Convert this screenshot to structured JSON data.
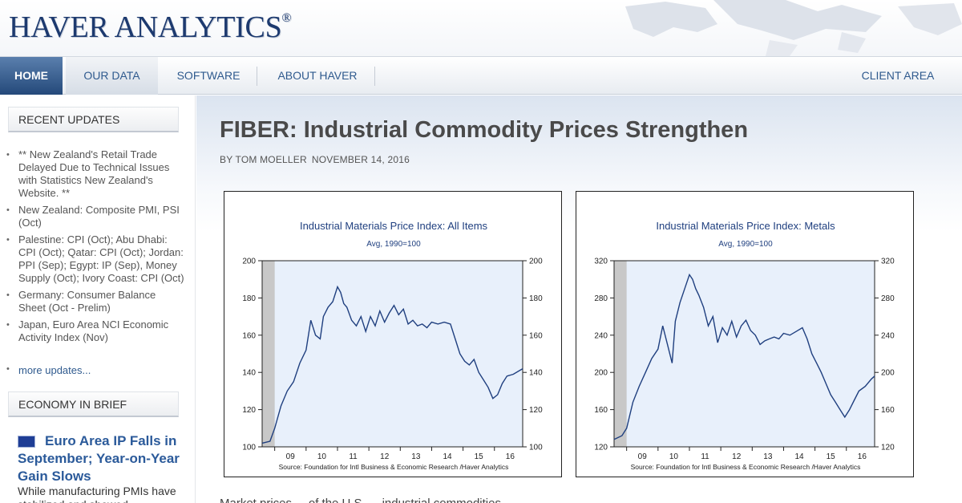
{
  "brand": {
    "name": "HAVER ANALYTICS",
    "mark": "®"
  },
  "nav": {
    "home": "HOME",
    "our_data": "OUR DATA",
    "software": "SOFTWARE",
    "about": "ABOUT HAVER",
    "client_area": "CLIENT AREA"
  },
  "sidebar": {
    "recent_heading": "RECENT UPDATES",
    "updates": [
      "** New Zealand's Retail Trade Delayed Due to Technical Issues with Statistics New Zealand's Website. **",
      "New Zealand: Composite PMI, PSI (Oct)",
      "Palestine: CPI (Oct); Abu Dhabi: CPI (Oct); Qatar: CPI (Oct); Jordan: PPI (Sep); Egypt: IP (Sep), Money Supply (Oct); Ivory Coast: CPI (Oct)",
      "Germany: Consumer Balance Sheet (Oct - Prelim)",
      "Japan, Euro Area NCI Economic Activity Index (Nov)"
    ],
    "more_updates": "more updates...",
    "brief_heading": "ECONOMY IN BRIEF",
    "brief_title": "Euro Area IP Falls in September; Year-on-Year Gain Slows",
    "brief_text": "While manufacturing PMIs have stabilized and showed"
  },
  "article": {
    "title": "FIBER: Industrial Commodity Prices Strengthen",
    "by": "BY TOM MOELLER",
    "date": "NOVEMBER 14, 2016",
    "body": "Market prices ... of the U.S. ... industrial commodities ... "
  },
  "colors": {
    "brand_blue": "#1d3a6f",
    "nav_active": "#24497a",
    "plot_bg": "#e8f0fb",
    "series": "#1f3f7f",
    "recession": "#c8c8c8"
  },
  "chart_data": [
    {
      "type": "line",
      "title": "Industrial Materials Price Index: All Items",
      "subtitle": "Avg, 1990=100",
      "source": "Source:  Foundation for Intl Business & Economic Research /Haver Analytics",
      "x_tick_labels": [
        "09",
        "10",
        "11",
        "12",
        "13",
        "14",
        "15",
        "16"
      ],
      "x_tick_positions": [
        2009.5,
        2010.5,
        2011.5,
        2012.5,
        2013.5,
        2014.5,
        2015.5,
        2016.5
      ],
      "xlim": [
        2008.6,
        2016.9
      ],
      "ylim": [
        100,
        200
      ],
      "y_ticks": [
        100,
        120,
        140,
        160,
        180,
        200
      ],
      "recession_band": [
        2008.6,
        2009.0
      ],
      "series": [
        {
          "name": "All Items",
          "x": [
            2008.6,
            2008.85,
            2009.0,
            2009.2,
            2009.4,
            2009.6,
            2009.8,
            2010.0,
            2010.15,
            2010.3,
            2010.45,
            2010.55,
            2010.7,
            2010.85,
            2011.0,
            2011.1,
            2011.2,
            2011.3,
            2011.45,
            2011.6,
            2011.75,
            2011.9,
            2012.05,
            2012.2,
            2012.35,
            2012.5,
            2012.65,
            2012.8,
            2012.95,
            2013.1,
            2013.25,
            2013.4,
            2013.55,
            2013.7,
            2013.85,
            2014.0,
            2014.2,
            2014.4,
            2014.6,
            2014.75,
            2014.9,
            2015.05,
            2015.2,
            2015.35,
            2015.5,
            2015.65,
            2015.8,
            2015.95,
            2016.1,
            2016.25,
            2016.4,
            2016.6,
            2016.8,
            2016.9
          ],
          "values": [
            102,
            103,
            110,
            122,
            130,
            135,
            145,
            152,
            168,
            160,
            158,
            170,
            175,
            178,
            186,
            183,
            177,
            175,
            168,
            165,
            170,
            162,
            170,
            165,
            173,
            167,
            172,
            176,
            171,
            174,
            166,
            168,
            165,
            166,
            164,
            167,
            166,
            167,
            166,
            158,
            150,
            146,
            144,
            147,
            140,
            136,
            132,
            126,
            128,
            134,
            138,
            139,
            141,
            142
          ]
        }
      ]
    },
    {
      "type": "line",
      "title": "Industrial Materials Price Index: Metals",
      "subtitle": "Avg, 1990=100",
      "source": "Source:  Foundation for Intl Business & Economic Research /Haver Analytics",
      "x_tick_labels": [
        "09",
        "10",
        "11",
        "12",
        "13",
        "14",
        "15",
        "16"
      ],
      "x_tick_positions": [
        2009.5,
        2010.5,
        2011.5,
        2012.5,
        2013.5,
        2014.5,
        2015.5,
        2016.5
      ],
      "xlim": [
        2008.6,
        2016.9
      ],
      "ylim": [
        120,
        320
      ],
      "y_ticks": [
        120,
        160,
        200,
        240,
        280,
        320
      ],
      "recession_band": [
        2008.6,
        2009.0
      ],
      "series": [
        {
          "name": "Metals",
          "x": [
            2008.6,
            2008.85,
            2009.0,
            2009.2,
            2009.4,
            2009.6,
            2009.8,
            2010.0,
            2010.15,
            2010.3,
            2010.45,
            2010.55,
            2010.7,
            2010.85,
            2011.0,
            2011.1,
            2011.2,
            2011.3,
            2011.45,
            2011.6,
            2011.75,
            2011.9,
            2012.05,
            2012.2,
            2012.35,
            2012.5,
            2012.65,
            2012.8,
            2012.95,
            2013.1,
            2013.25,
            2013.4,
            2013.55,
            2013.7,
            2013.85,
            2014.0,
            2014.2,
            2014.4,
            2014.6,
            2014.75,
            2014.9,
            2015.05,
            2015.2,
            2015.35,
            2015.5,
            2015.65,
            2015.8,
            2015.95,
            2016.1,
            2016.25,
            2016.4,
            2016.6,
            2016.8,
            2016.9
          ],
          "values": [
            128,
            132,
            140,
            168,
            185,
            200,
            215,
            225,
            250,
            230,
            210,
            255,
            275,
            290,
            305,
            300,
            290,
            283,
            270,
            250,
            260,
            232,
            248,
            240,
            255,
            238,
            250,
            256,
            245,
            240,
            230,
            234,
            236,
            238,
            236,
            242,
            240,
            244,
            248,
            236,
            220,
            210,
            200,
            188,
            176,
            168,
            160,
            152,
            160,
            170,
            180,
            185,
            193,
            196
          ]
        }
      ]
    }
  ]
}
